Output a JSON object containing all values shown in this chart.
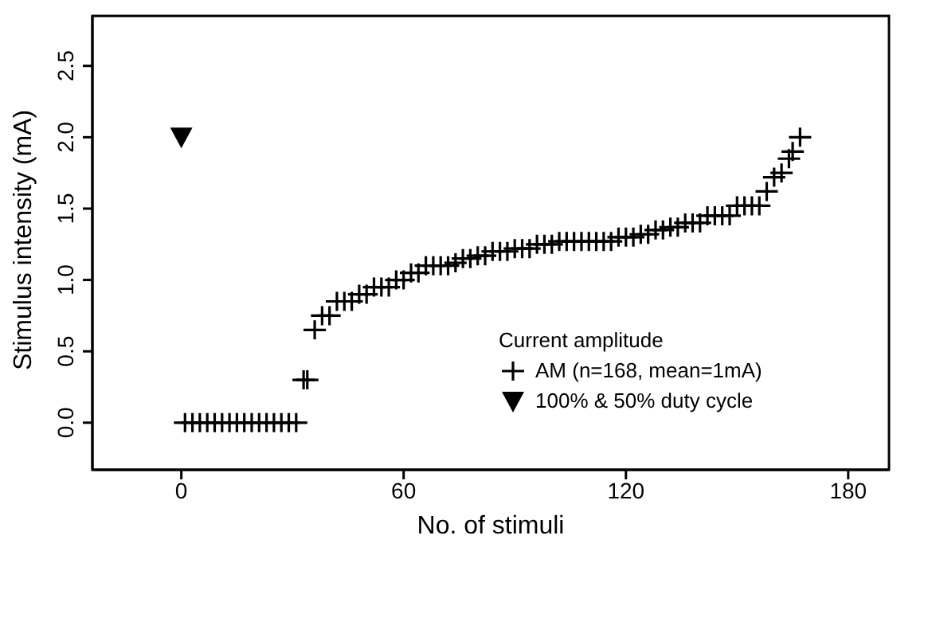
{
  "chart_data": {
    "type": "scatter",
    "xlabel": "No. of stimuli",
    "ylabel": "Stimulus intensity (mA)",
    "legend_title": "Current amplitude",
    "legend": "right",
    "grid": false,
    "xlim": [
      -24,
      191
    ],
    "xticks": [
      0,
      60,
      120,
      180
    ],
    "ylim": [
      -0.33,
      2.85
    ],
    "yticks": [
      {
        "value": 0,
        "label": "0.0"
      },
      0.5,
      {
        "value": 1,
        "label": "1.0"
      },
      1.5,
      {
        "value": 2,
        "label": "2.0"
      },
      2.5
    ],
    "series": [
      {
        "name": "AM (n=168, mean=1mA)",
        "color": "#000000",
        "marker": "cross",
        "x": [
          1,
          3,
          5,
          7,
          9,
          11,
          13,
          15,
          17,
          19,
          21,
          23,
          25,
          27,
          29,
          31,
          33,
          34,
          36,
          38,
          40,
          42,
          44,
          46,
          48,
          50,
          52,
          54,
          56,
          58,
          60,
          62,
          64,
          66,
          68,
          70,
          72,
          74,
          76,
          78,
          80,
          82,
          84,
          86,
          88,
          90,
          92,
          94,
          96,
          98,
          100,
          102,
          104,
          106,
          108,
          110,
          112,
          114,
          116,
          118,
          120,
          122,
          124,
          126,
          128,
          130,
          132,
          134,
          136,
          138,
          140,
          142,
          144,
          146,
          148,
          150,
          152,
          154,
          156,
          158,
          160,
          162,
          164,
          165,
          167
        ],
        "values": [
          0,
          0,
          0,
          0,
          0,
          0,
          0,
          0,
          0,
          0,
          0,
          0,
          0,
          0,
          0,
          0,
          0.3,
          0.3,
          0.65,
          0.75,
          0.75,
          0.85,
          0.85,
          0.85,
          0.9,
          0.9,
          0.95,
          0.95,
          0.95,
          1.0,
          1.0,
          1.05,
          1.05,
          1.1,
          1.1,
          1.1,
          1.1,
          1.12,
          1.15,
          1.15,
          1.17,
          1.17,
          1.2,
          1.2,
          1.2,
          1.22,
          1.22,
          1.22,
          1.25,
          1.25,
          1.25,
          1.27,
          1.27,
          1.27,
          1.27,
          1.27,
          1.27,
          1.27,
          1.27,
          1.3,
          1.3,
          1.3,
          1.32,
          1.32,
          1.35,
          1.35,
          1.37,
          1.37,
          1.4,
          1.4,
          1.4,
          1.45,
          1.45,
          1.45,
          1.45,
          1.52,
          1.52,
          1.52,
          1.52,
          1.62,
          1.72,
          1.75,
          1.85,
          1.9,
          2.0
        ]
      },
      {
        "name": "100% & 50% duty cycle",
        "color": "#000000",
        "marker": "triangle",
        "x": [
          0
        ],
        "values": [
          2.0
        ]
      }
    ]
  }
}
